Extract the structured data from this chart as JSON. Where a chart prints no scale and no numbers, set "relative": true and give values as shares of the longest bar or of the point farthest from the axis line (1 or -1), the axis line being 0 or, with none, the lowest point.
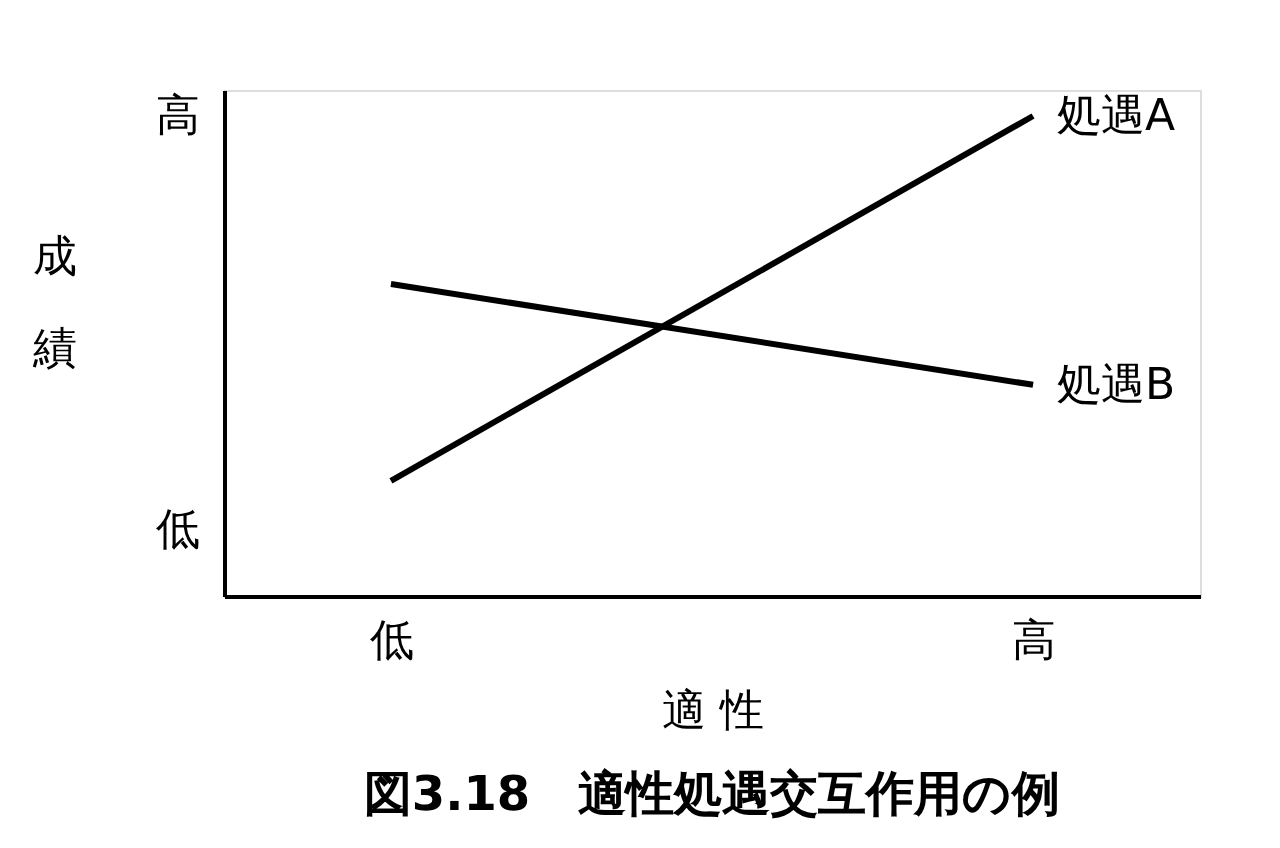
{
  "chart_data": {
    "type": "line",
    "title": "図3.18　適性処遇交互作用の例",
    "xlabel": "適 性",
    "ylabel": "成績",
    "categories": [
      "低",
      "高"
    ],
    "relative": true,
    "series": [
      {
        "name": "処遇A",
        "color": "#000000",
        "values": [
          0.24,
          1.0
        ]
      },
      {
        "name": "処遇B",
        "color": "#000000",
        "values": [
          0.65,
          0.44
        ]
      }
    ],
    "annotations": [
      "高",
      "低"
    ],
    "grid": false,
    "legend": false,
    "marker": "none",
    "line_style": "solid"
  }
}
